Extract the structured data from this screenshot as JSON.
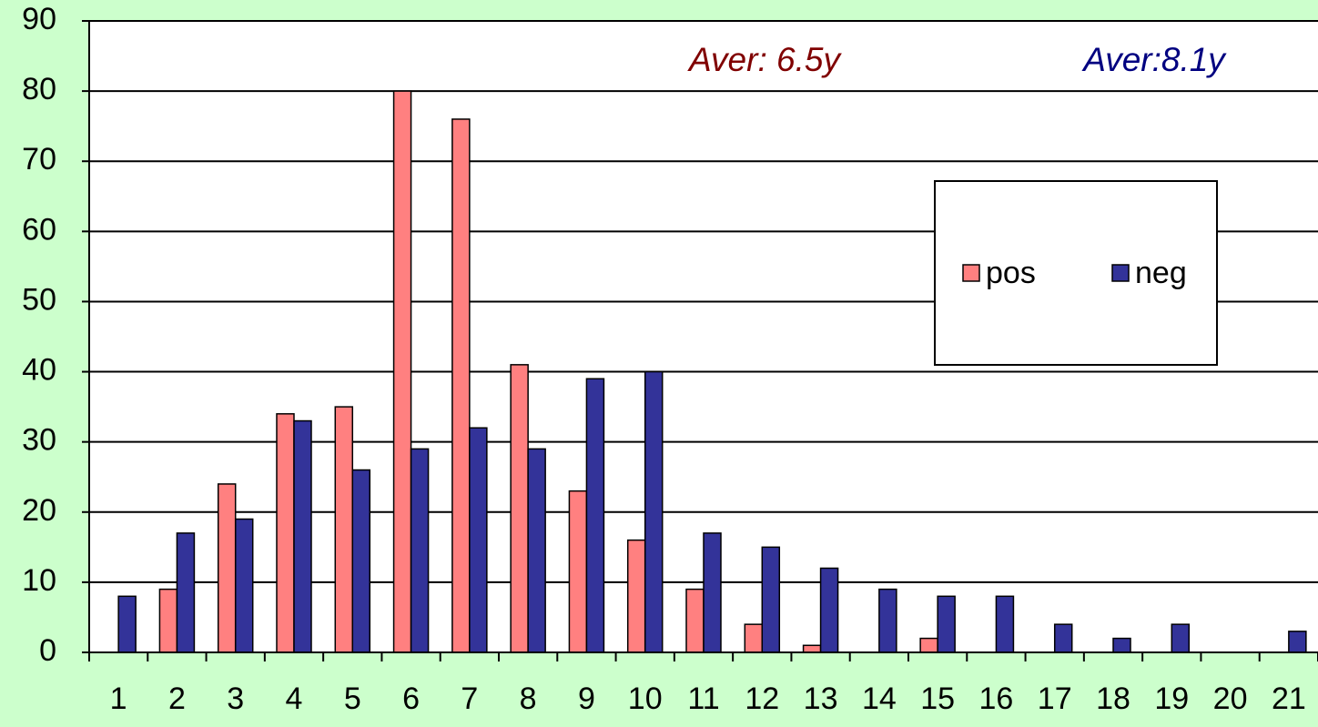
{
  "chart_data": {
    "type": "bar",
    "categories": [
      "1",
      "2",
      "3",
      "4",
      "5",
      "6",
      "7",
      "8",
      "9",
      "10",
      "11",
      "12",
      "13",
      "14",
      "15",
      "16",
      "17",
      "18",
      "19",
      "20",
      "21"
    ],
    "series": [
      {
        "name": "pos",
        "color": "#ff8080",
        "values": [
          0,
          9,
          24,
          34,
          35,
          80,
          76,
          41,
          23,
          16,
          9,
          4,
          1,
          0,
          2,
          0,
          0,
          0,
          0,
          0,
          0
        ]
      },
      {
        "name": "neg",
        "color": "#333399",
        "values": [
          8,
          17,
          19,
          33,
          26,
          29,
          32,
          29,
          39,
          40,
          17,
          15,
          12,
          9,
          8,
          8,
          4,
          2,
          4,
          0,
          3
        ]
      }
    ],
    "annotations": [
      {
        "text": "Aver: 6.5y",
        "color": "#800000"
      },
      {
        "text": "Aver:8.1y",
        "color": "#000080"
      }
    ],
    "ylim": [
      0,
      90
    ],
    "yticks": [
      0,
      10,
      20,
      30,
      40,
      50,
      60,
      70,
      80,
      90
    ],
    "grid": true,
    "legend": "right"
  }
}
